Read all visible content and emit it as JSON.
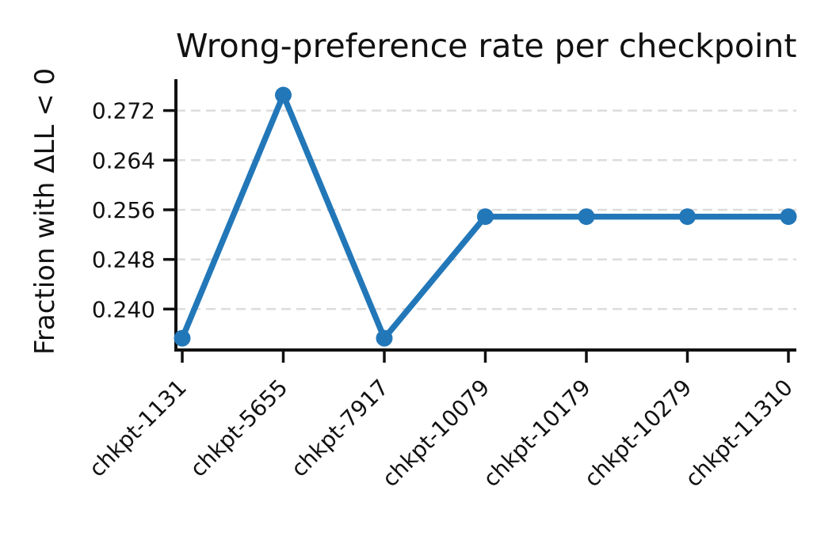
{
  "chart_data": {
    "type": "line",
    "title": "Wrong-preference rate per checkpoint",
    "xlabel": "",
    "ylabel": "Fraction with ΔLL < 0",
    "categories": [
      "chkpt-1131",
      "chkpt-5655",
      "chkpt-7917",
      "chkpt-10079",
      "chkpt-10179",
      "chkpt-10279",
      "chkpt-11310"
    ],
    "series": [
      {
        "name": "wrong-preference rate",
        "values": [
          0.2353,
          0.2745,
          0.2353,
          0.2549,
          0.2549,
          0.2549,
          0.2549
        ]
      }
    ],
    "yticks": {
      "values": [
        0.24,
        0.248,
        0.256,
        0.264,
        0.272
      ],
      "labels": [
        "0.240",
        "0.248",
        "0.256",
        "0.264",
        "0.272"
      ]
    },
    "ylim": [
      0.2334,
      0.2768
    ],
    "grid": "horizontal-dashed",
    "legend": "none",
    "marker": "circle",
    "colors": {
      "line": "#2277b8",
      "grid": "#dcdcdc",
      "axis": "#111111",
      "text": "#111111",
      "background": "#ffffff"
    }
  }
}
